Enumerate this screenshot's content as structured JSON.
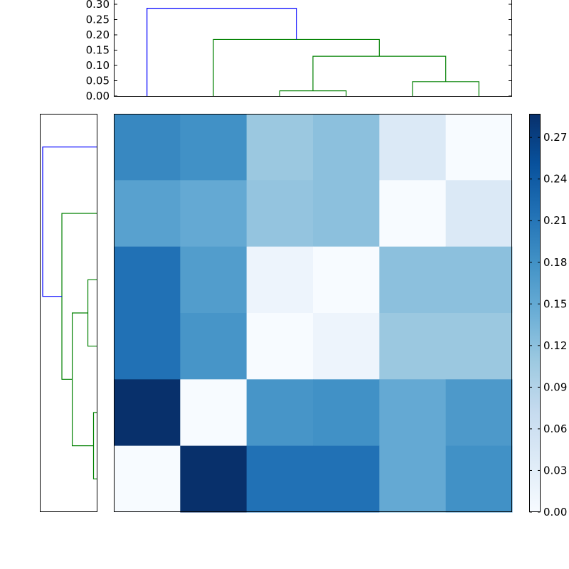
{
  "chart_data": [
    {
      "type": "dendrogram",
      "title": "",
      "orientation": "top",
      "yticks": [
        "0.00",
        "0.05",
        "0.10",
        "0.15",
        "0.20",
        "0.25",
        "0.30"
      ],
      "ylim": [
        0,
        0.29
      ],
      "leaves": 6,
      "links": [
        {
          "color": "#008000",
          "left_pos": 3.0,
          "right_pos": 4.0,
          "left_h": 0,
          "right_h": 0,
          "height": 0.017
        },
        {
          "color": "#008000",
          "left_pos": 5.0,
          "right_pos": 6.0,
          "left_h": 0,
          "right_h": 0,
          "height": 0.047
        },
        {
          "color": "#008000",
          "left_pos": 3.5,
          "right_pos": 5.5,
          "left_h": 0.017,
          "right_h": 0.047,
          "height": 0.13
        },
        {
          "color": "#008000",
          "left_pos": 2.0,
          "right_pos": 4.5,
          "left_h": 0,
          "right_h": 0.13,
          "height": 0.185
        },
        {
          "color": "#0000ff",
          "left_pos": 1.0,
          "right_pos": 3.25,
          "left_h": 0,
          "right_h": 0.185,
          "height": 0.287
        }
      ]
    },
    {
      "type": "dendrogram",
      "orientation": "left",
      "leaves": 6,
      "links": [
        {
          "color": "#008000",
          "left_pos": 6.0,
          "right_pos": 5.0,
          "left_h": 0,
          "right_h": 0,
          "height": 0.017
        },
        {
          "color": "#008000",
          "left_pos": 4.0,
          "right_pos": 3.0,
          "left_h": 0,
          "right_h": 0,
          "height": 0.047
        },
        {
          "color": "#008000",
          "left_pos": 5.5,
          "right_pos": 3.5,
          "left_h": 0.017,
          "right_h": 0.047,
          "height": 0.13
        },
        {
          "color": "#008000",
          "left_pos": 4.5,
          "right_pos": 2.0,
          "left_h": 0.13,
          "right_h": 0,
          "height": 0.185
        },
        {
          "color": "#0000ff",
          "left_pos": 3.25,
          "right_pos": 1.0,
          "left_h": 0.185,
          "right_h": 0,
          "height": 0.287
        }
      ]
    },
    {
      "type": "heatmap",
      "colormap": "Blues",
      "vmin": 0,
      "vmax": 0.287,
      "matrix": [
        [
          0.19,
          0.18,
          0.11,
          0.12,
          0.04,
          0.0
        ],
        [
          0.16,
          0.15,
          0.115,
          0.12,
          0.0,
          0.04
        ],
        [
          0.215,
          0.165,
          0.015,
          0.0,
          0.12,
          0.12
        ],
        [
          0.215,
          0.175,
          0.0,
          0.015,
          0.11,
          0.11
        ],
        [
          0.287,
          0.0,
          0.175,
          0.18,
          0.15,
          0.17
        ],
        [
          0.0,
          0.287,
          0.215,
          0.215,
          0.15,
          0.18
        ]
      ],
      "colorbar_ticks": [
        "0.00",
        "0.03",
        "0.06",
        "0.09",
        "0.12",
        "0.15",
        "0.18",
        "0.21",
        "0.24",
        "0.27"
      ]
    }
  ],
  "colors": {
    "blues_stops": [
      "#f7fbff",
      "#deebf7",
      "#c6dbef",
      "#9ecae1",
      "#6baed6",
      "#4292c6",
      "#2171b5",
      "#08519c",
      "#08306b"
    ]
  }
}
